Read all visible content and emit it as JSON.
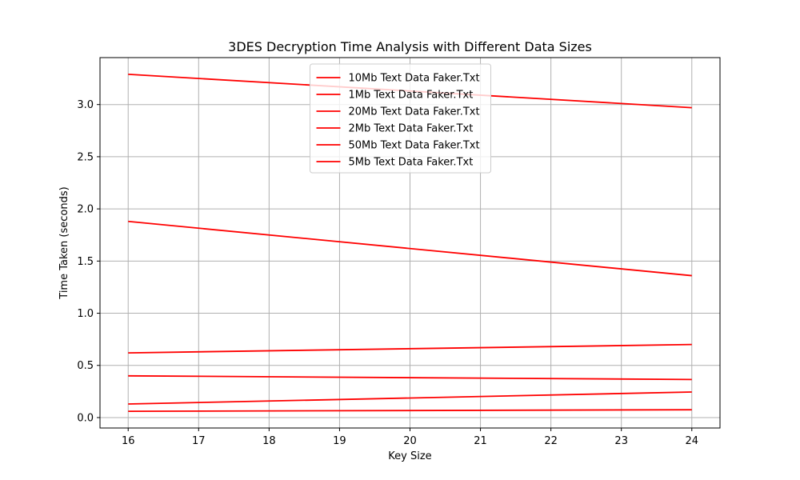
{
  "chart_data": {
    "type": "line",
    "title": "3DES Decryption Time Analysis with Different Data Sizes",
    "xlabel": "Key Size",
    "ylabel": "Time Taken (seconds)",
    "xlim": [
      15.6,
      24.4
    ],
    "ylim": [
      -0.1,
      3.45
    ],
    "x_ticks": [
      16,
      17,
      18,
      19,
      20,
      21,
      22,
      23,
      24
    ],
    "y_ticks": [
      0.0,
      0.5,
      1.0,
      1.5,
      2.0,
      2.5,
      3.0
    ],
    "y_tick_labels": [
      "0.0",
      "0.5",
      "1.0",
      "1.5",
      "2.0",
      "2.5",
      "3.0"
    ],
    "grid": true,
    "legend_position": "upper-center",
    "x": [
      16,
      24
    ],
    "series": [
      {
        "name": "10Mb Text Data Faker.Txt",
        "values": [
          0.62,
          0.7
        ],
        "color": "#ff0000"
      },
      {
        "name": "1Mb Text Data Faker.Txt",
        "values": [
          0.06,
          0.075
        ],
        "color": "#ff0000"
      },
      {
        "name": "20Mb Text Data Faker.Txt",
        "values": [
          1.88,
          1.36
        ],
        "color": "#ff0000"
      },
      {
        "name": "2Mb Text Data Faker.Txt",
        "values": [
          0.13,
          0.245
        ],
        "color": "#ff0000"
      },
      {
        "name": "50Mb Text Data Faker.Txt",
        "values": [
          3.29,
          2.97
        ],
        "color": "#ff0000"
      },
      {
        "name": "5Mb Text Data Faker.Txt",
        "values": [
          0.4,
          0.365
        ],
        "color": "#ff0000"
      }
    ]
  }
}
